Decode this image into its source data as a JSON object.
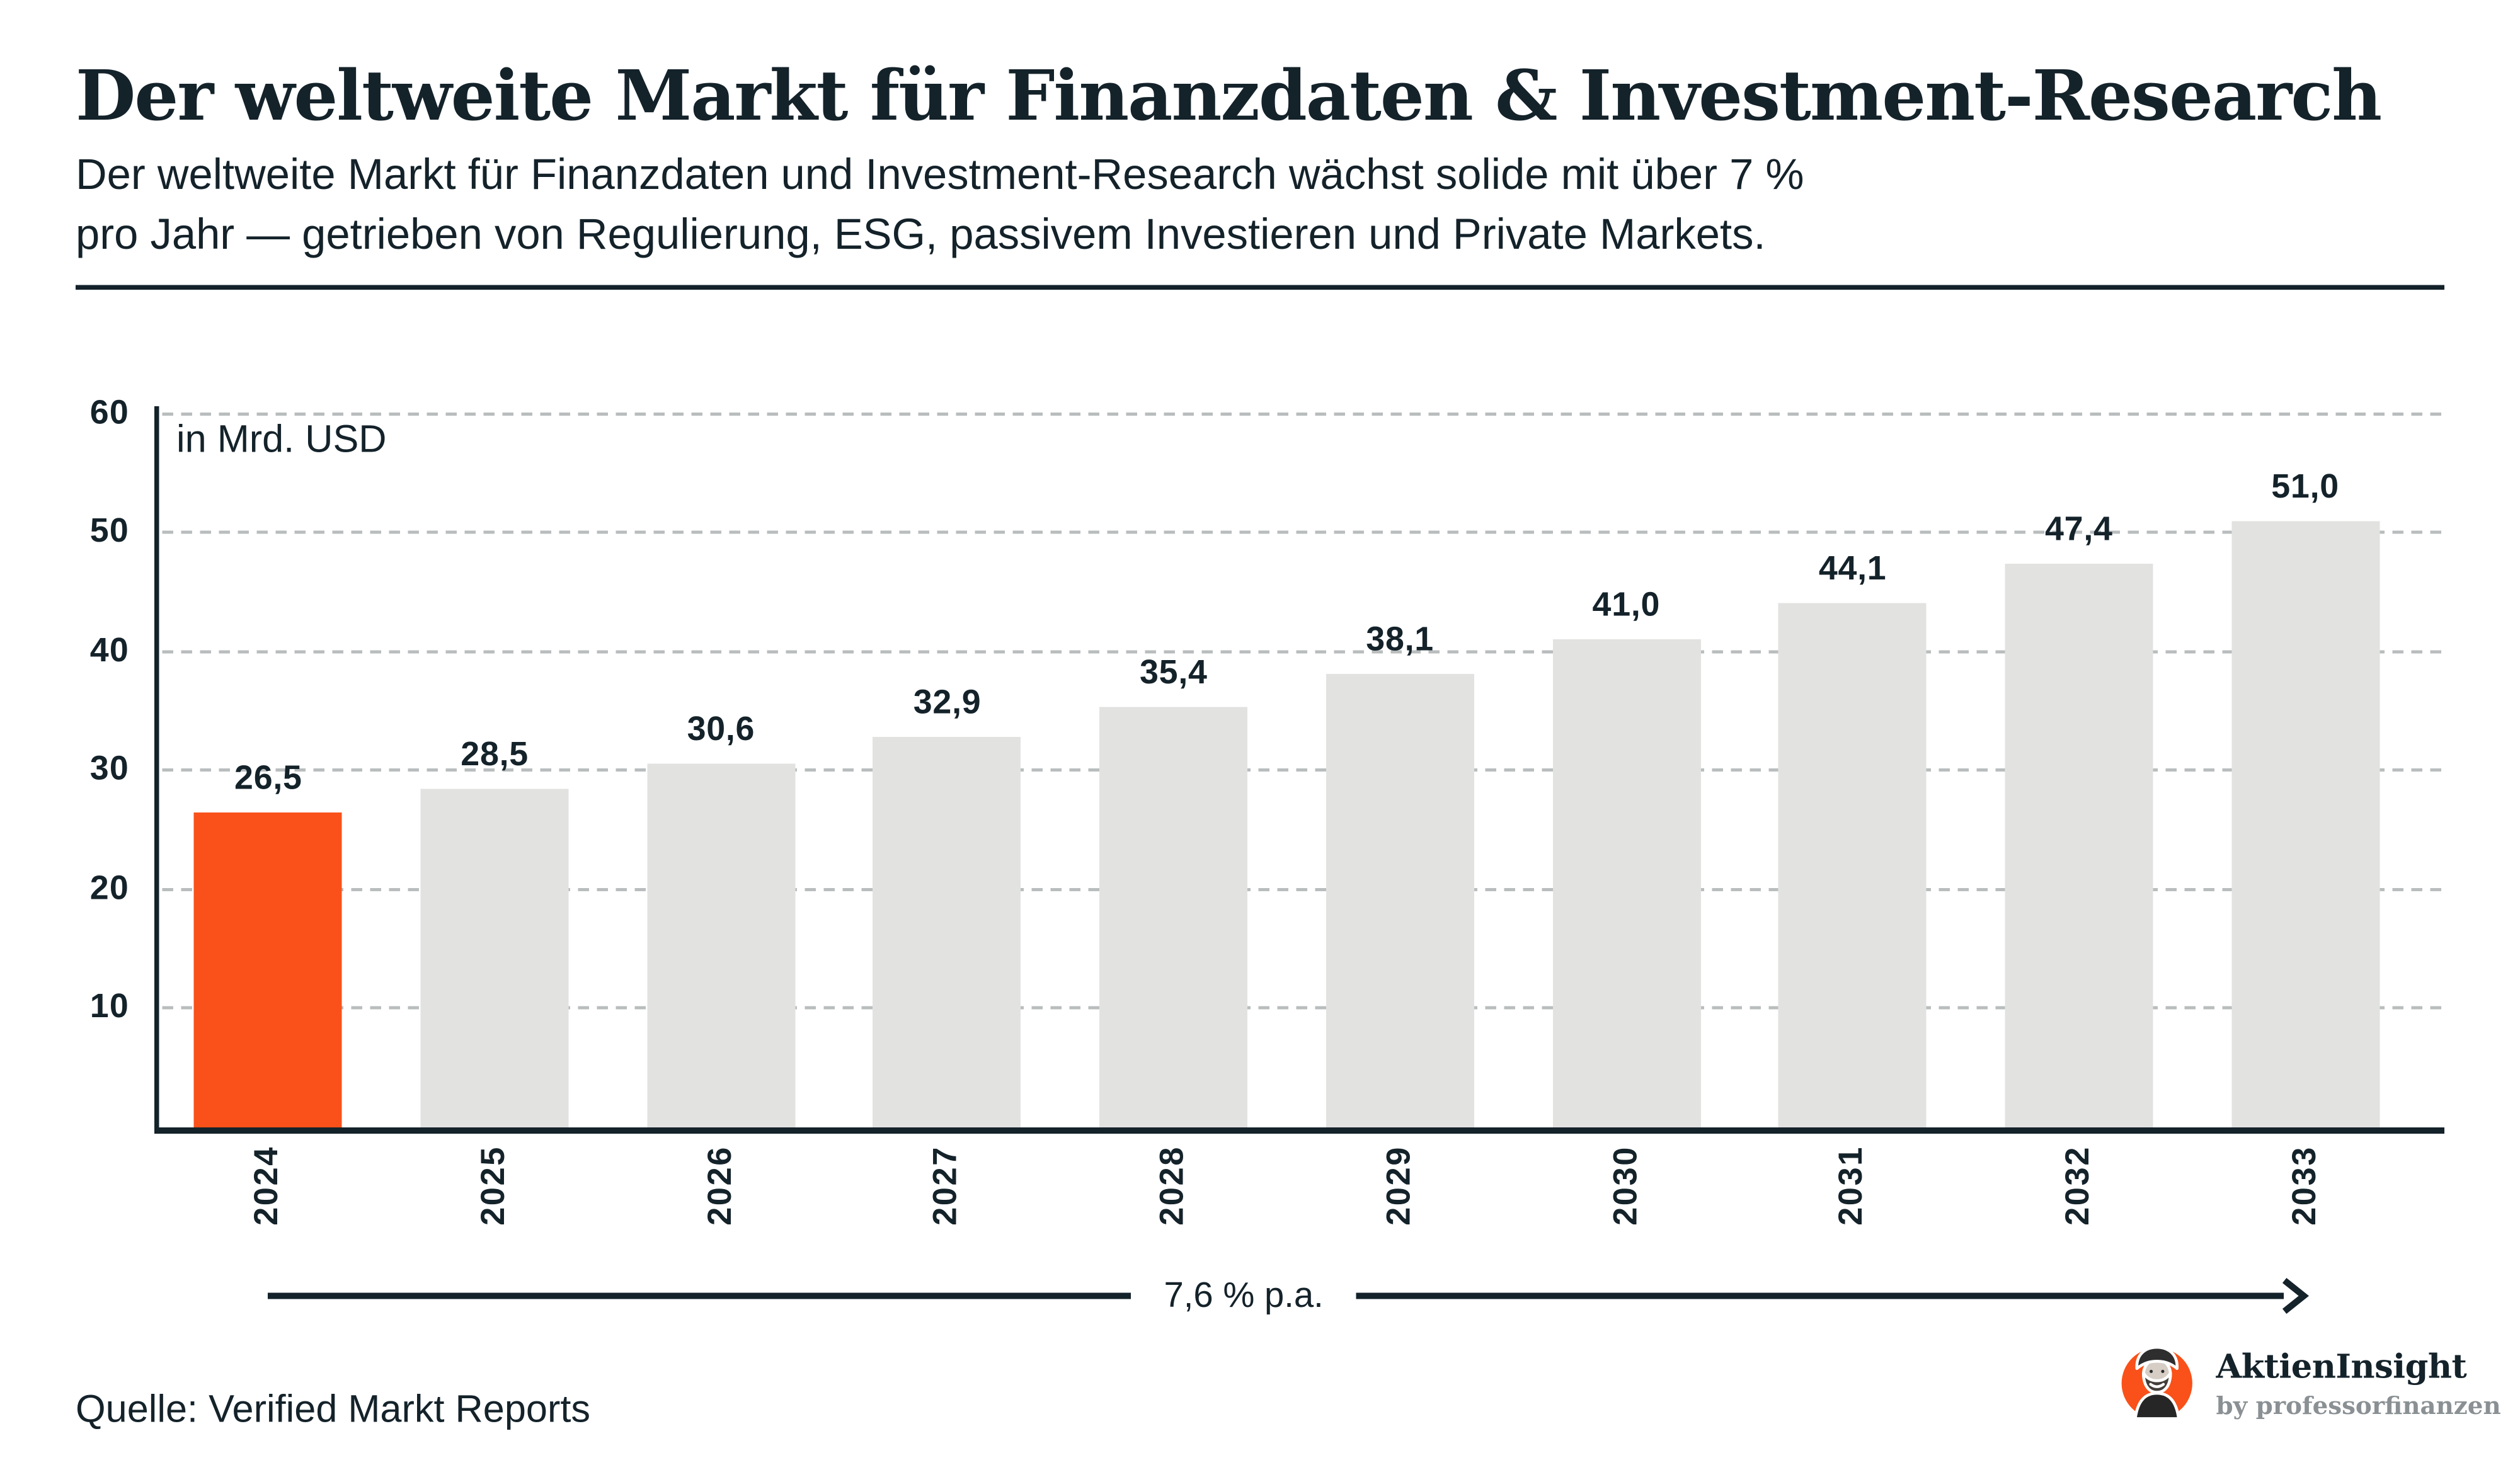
{
  "header": {
    "title": "Der weltweite Markt für Finanzdaten & Investment-Research",
    "subtitle_lines": [
      "Der weltweite Markt für Finanzdaten und Investment-Research wächst solide mit über 7 %",
      "pro Jahr — getrieben von Regulierung, ESG, passivem Investieren und Private Markets."
    ]
  },
  "chart_data": {
    "type": "bar",
    "categories": [
      "2024",
      "2025",
      "2026",
      "2027",
      "2028",
      "2029",
      "2030",
      "2031",
      "2032",
      "2033"
    ],
    "values": [
      26.5,
      28.5,
      30.6,
      32.9,
      35.4,
      38.1,
      41.0,
      44.1,
      47.4,
      51.0
    ],
    "value_labels": [
      "26,5",
      "28,5",
      "30,6",
      "32,9",
      "35,4",
      "38,1",
      "41,0",
      "44,1",
      "47,4",
      "51,0"
    ],
    "unit_label": "in Mrd. USD",
    "title": "Der weltweite Markt für Finanzdaten & Investment-Research",
    "xlabel": "",
    "ylabel": "in Mrd. USD",
    "ylim": [
      0,
      60
    ],
    "yticks": [
      10,
      20,
      30,
      40,
      50,
      60
    ],
    "grid": "horizontal-dashed",
    "legend": "none",
    "highlight_index": 0,
    "growth_annotation": "7,6 % p.a."
  },
  "footer": {
    "source": "Quelle: Verified Markt Reports",
    "brand": {
      "name": "AktienInsight",
      "byline": "by professorfinanzen"
    }
  },
  "colors": {
    "accent": "#F95119",
    "bar": "#E2E2E1",
    "ink": "#14222A",
    "grid": "#B9BDBD",
    "muted": "#8A9093"
  }
}
